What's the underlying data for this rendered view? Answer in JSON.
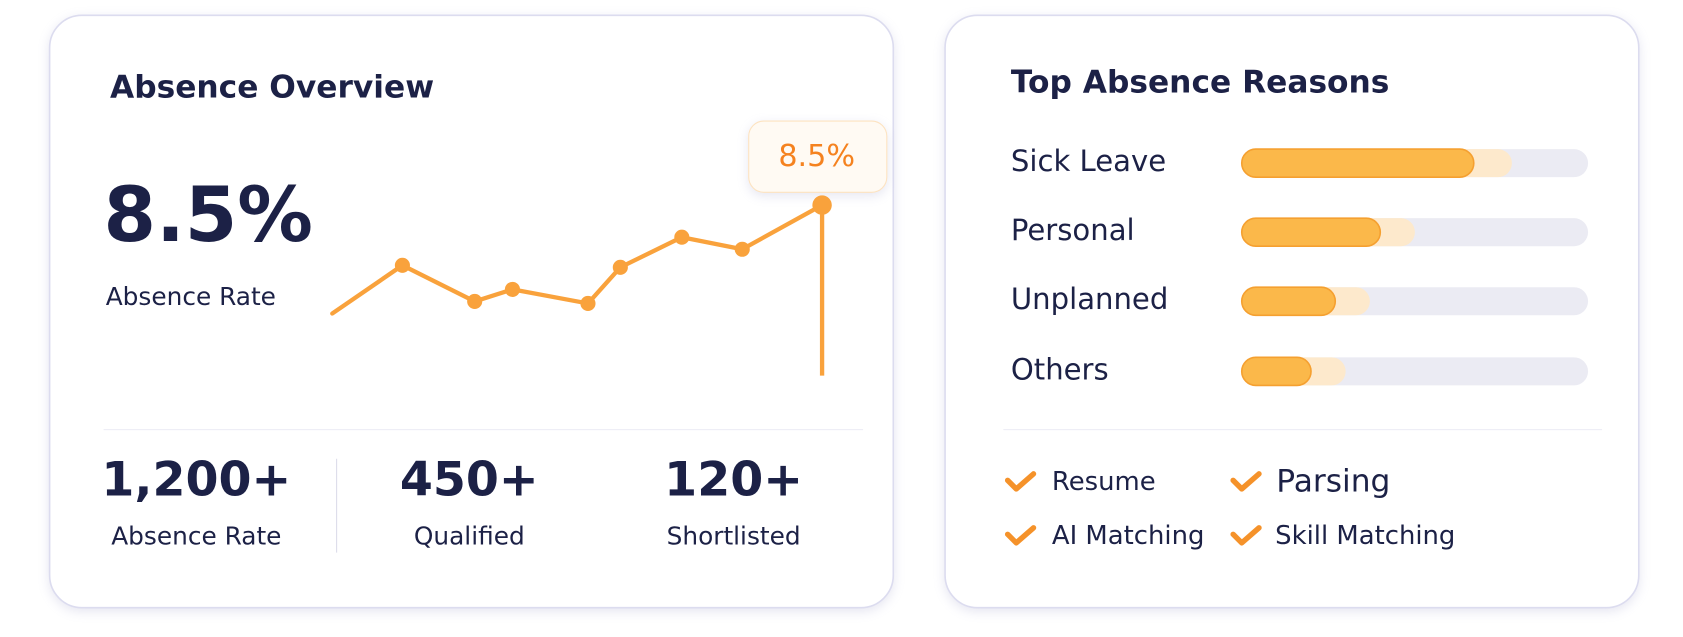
{
  "overview": {
    "title": "Absence Overview",
    "rate": "8.5%",
    "rate_label": "Absence Rate",
    "trend": [
      3.1,
      5.5,
      3.7,
      4.3,
      3.6,
      5.4,
      6.9,
      6.3,
      8.5
    ],
    "tooltip": "8.5%",
    "stats": [
      {
        "value": "1,200+",
        "label": "Absence Rate"
      },
      {
        "value": "450+",
        "label": "Qualified"
      },
      {
        "value": "120+",
        "label": "Shortlisted"
      }
    ]
  },
  "reasons": {
    "title": "Top Absence Reasons",
    "items": [
      {
        "label": "Sick Leave",
        "value": 67,
        "secondary": 78
      },
      {
        "label": "Personal",
        "value": 40,
        "secondary": 50
      },
      {
        "label": "Unplanned",
        "value": 27,
        "secondary": 37
      },
      {
        "label": "Others",
        "value": 20,
        "secondary": 30
      }
    ],
    "tags": [
      "Resume",
      "Parsing",
      "AI Matching",
      "Skill Matching"
    ]
  }
}
